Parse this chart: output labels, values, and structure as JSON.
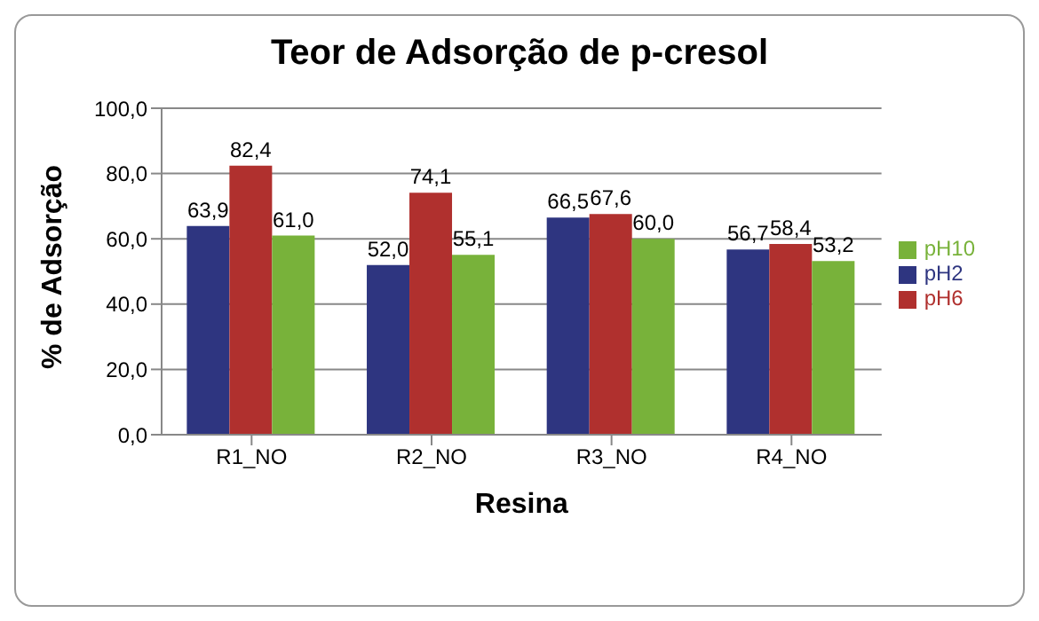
{
  "chart_data": {
    "type": "bar",
    "title": "Teor de Adsorção de p-cresol",
    "xlabel": "Resina",
    "ylabel": "% de Adsorção",
    "categories": [
      "R1_NO",
      "R2_NO",
      "R3_NO",
      "R4_NO"
    ],
    "series": [
      {
        "name": "pH2",
        "color": "#2e3580",
        "values": [
          63.9,
          52.0,
          66.5,
          56.7
        ],
        "value_labels": [
          "63,9",
          "52,0",
          "66,5",
          "56,7"
        ]
      },
      {
        "name": "pH6",
        "color": "#b0302e",
        "values": [
          82.4,
          74.1,
          67.6,
          58.4
        ],
        "value_labels": [
          "82,4",
          "74,1",
          "67,6",
          "58,4"
        ]
      },
      {
        "name": "pH10",
        "color": "#78b23a",
        "values": [
          61.0,
          55.1,
          60.0,
          53.2
        ],
        "value_labels": [
          "61,0",
          "55,1",
          "60,0",
          "53,2"
        ]
      }
    ],
    "ylim": [
      0,
      100
    ],
    "yticks": [
      {
        "value": 0,
        "label": "0,0"
      },
      {
        "value": 20,
        "label": "20,0"
      },
      {
        "value": 40,
        "label": "40,0"
      },
      {
        "value": 60,
        "label": "60,0"
      },
      {
        "value": 80,
        "label": "80,0"
      },
      {
        "value": 100,
        "label": "100,0"
      }
    ],
    "grid": "y",
    "legend": "right"
  }
}
